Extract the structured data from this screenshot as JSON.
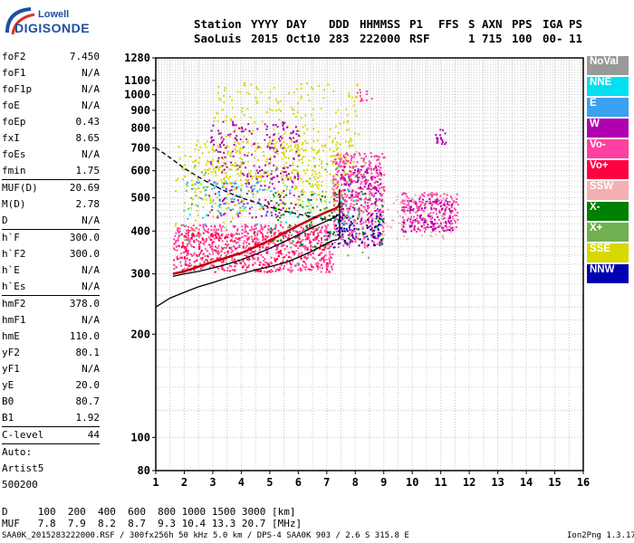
{
  "logo": {
    "line1": "Lowell",
    "line2": "DIGISONDE"
  },
  "header": {
    "row1": [
      "Station",
      "YYYY",
      "DAY",
      "DDD",
      "HHMMSS",
      "P1",
      "FFS",
      "S",
      "AXN",
      "PPS",
      "IGA",
      "PS"
    ],
    "row2": [
      "SaoLuis",
      "2015",
      "Oct10",
      "283",
      "222000",
      "RSF",
      "1",
      "715",
      "100",
      "00-",
      "11"
    ]
  },
  "params": [
    {
      "name": "foF2",
      "value": "7.450"
    },
    {
      "name": "foF1",
      "value": "N/A"
    },
    {
      "name": "foF1p",
      "value": "N/A"
    },
    {
      "name": "foE",
      "value": "N/A"
    },
    {
      "name": "foEp",
      "value": "0.43"
    },
    {
      "name": "fxI",
      "value": "8.65"
    },
    {
      "name": "foEs",
      "value": "N/A"
    },
    {
      "name": "fmin",
      "value": "1.75"
    },
    {
      "name": "MUF(D)",
      "value": "20.69",
      "sep": true
    },
    {
      "name": "M(D)",
      "value": "2.78"
    },
    {
      "name": "D",
      "value": "N/A"
    },
    {
      "name": "h`F",
      "value": "300.0",
      "sep": true
    },
    {
      "name": "h`F2",
      "value": "300.0"
    },
    {
      "name": "h`E",
      "value": "N/A"
    },
    {
      "name": "h`Es",
      "value": "N/A"
    },
    {
      "name": "hmF2",
      "value": "378.0",
      "sep": true
    },
    {
      "name": "hmF1",
      "value": "N/A"
    },
    {
      "name": "hmE",
      "value": "110.0"
    },
    {
      "name": "yF2",
      "value": "80.1"
    },
    {
      "name": "yF1",
      "value": "N/A"
    },
    {
      "name": "yE",
      "value": "20.0"
    },
    {
      "name": "B0",
      "value": "80.7"
    },
    {
      "name": "B1",
      "value": "1.92"
    },
    {
      "name": "C-level",
      "value": "44",
      "sep": true
    },
    {
      "name": "Auto:",
      "value": "",
      "sep": true
    },
    {
      "name": "Artist5",
      "value": ""
    },
    {
      "name": "500200",
      "value": ""
    }
  ],
  "legend": [
    {
      "label": "NoVal",
      "color": "#999999"
    },
    {
      "label": "NNE",
      "color": "#00e0f0"
    },
    {
      "label": "E",
      "color": "#3aa0f0"
    },
    {
      "label": "W",
      "color": "#b000b0"
    },
    {
      "label": "Vo-",
      "color": "#ff40a0"
    },
    {
      "label": "Vo+",
      "color": "#ff0040"
    },
    {
      "label": "SSW",
      "color": "#f4b0b0"
    },
    {
      "label": "X-",
      "color": "#008000"
    },
    {
      "label": "X+",
      "color": "#70b050"
    },
    {
      "label": "SSE",
      "color": "#d8d800"
    },
    {
      "label": "NNW",
      "color": "#0000b0"
    }
  ],
  "footer": {
    "d_row": "D     100  200  400  600  800 1000 1500 3000 [km]",
    "muf_row": "MUF   7.8  7.9  8.2  8.7  9.3 10.4 13.3 20.7 [MHz]",
    "file_info": "SAA0K_2015283222000.RSF / 300fx256h 50 kHz 5.0 km / DPS-4 SAA0K 903 / 2.6 S 315.8 E",
    "version": "Ion2Png 1.3.17"
  },
  "chart_data": {
    "type": "scatter",
    "xlim": [
      1,
      16
    ],
    "ylim": [
      80,
      1280
    ],
    "y_scale": "log",
    "x_ticks": [
      "1",
      "2",
      "3",
      "4",
      "5",
      "6",
      "7",
      "8",
      "9",
      "10",
      "11",
      "12",
      "13",
      "14",
      "15",
      "16"
    ],
    "y_ticks": [
      {
        "v": 80,
        "label": "80"
      },
      {
        "v": 100,
        "label": "100"
      },
      {
        "v": 200,
        "label": "200"
      },
      {
        "v": 300,
        "label": "300"
      },
      {
        "v": 400,
        "label": "400"
      },
      {
        "v": 500,
        "label": "500"
      },
      {
        "v": 600,
        "label": "600"
      },
      {
        "v": 700,
        "label": "700"
      },
      {
        "v": 800,
        "label": "800"
      },
      {
        "v": 900,
        "label": "900"
      },
      {
        "v": 1000,
        "label": "1000"
      },
      {
        "v": 1100,
        "label": "1100"
      },
      {
        "v": 1280,
        "label": "1280"
      }
    ],
    "grid": true,
    "traces": [
      {
        "name": "F2",
        "color": "#c00000",
        "x": [
          1.6,
          2.0,
          2.5,
          3.0,
          3.5,
          4.0,
          4.5,
          5.0,
          5.5,
          6.0,
          6.5,
          7.0,
          7.3,
          7.45
        ],
        "y": [
          300,
          305,
          315,
          325,
          335,
          345,
          360,
          375,
          395,
          415,
          435,
          455,
          465,
          475
        ]
      },
      {
        "name": "F2-profile",
        "color": "#000000",
        "x": [
          1.6,
          2.0,
          2.5,
          3.0,
          3.5,
          4.0,
          4.5,
          5.0,
          5.5,
          6.0,
          6.5,
          7.0,
          7.3,
          7.45
        ],
        "y": [
          295,
          300,
          305,
          312,
          320,
          330,
          342,
          356,
          372,
          390,
          410,
          428,
          440,
          448
        ]
      },
      {
        "name": "profile",
        "color": "#000000",
        "x": [
          1.0,
          1.5,
          2.0,
          2.5,
          3.0,
          3.5,
          4.0,
          4.5,
          5.0,
          5.5,
          6.0,
          6.5,
          7.0,
          7.2,
          7.4,
          7.45,
          7.45
        ],
        "y": [
          240,
          255,
          265,
          275,
          283,
          292,
          300,
          308,
          315,
          323,
          335,
          350,
          368,
          375,
          378,
          385,
          530
        ]
      },
      {
        "name": "MUF",
        "color": "#000000",
        "dashed": true,
        "x": [
          1.0,
          1.5,
          2.0,
          2.5,
          3.0,
          3.5,
          4.0,
          4.5,
          5.0,
          5.5,
          6.0,
          6.5,
          7.0,
          7.3
        ],
        "y": [
          700,
          655,
          610,
          575,
          545,
          520,
          500,
          485,
          470,
          458,
          448,
          440,
          432,
          428
        ]
      }
    ],
    "clusters": [
      {
        "color": "#d8d800",
        "x": [
          2.2,
          7.8
        ],
        "y": [
          460,
          740
        ],
        "n": 380
      },
      {
        "color": "#d8d800",
        "x": [
          3.0,
          8.2
        ],
        "y": [
          560,
          1100
        ],
        "n": 220
      },
      {
        "color": "#b000b0",
        "x": [
          2.8,
          6.0
        ],
        "y": [
          440,
          840
        ],
        "n": 260
      },
      {
        "color": "#ff40a0",
        "x": [
          1.6,
          7.2
        ],
        "y": [
          305,
          420
        ],
        "n": 700
      },
      {
        "color": "#ff0040",
        "x": [
          1.6,
          7.0
        ],
        "y": [
          305,
          400
        ],
        "n": 250
      },
      {
        "color": "#ff40a0",
        "x": [
          7.2,
          9.0
        ],
        "y": [
          360,
          680
        ],
        "n": 420
      },
      {
        "color": "#b000b0",
        "x": [
          7.4,
          8.9
        ],
        "y": [
          370,
          620
        ],
        "n": 160
      },
      {
        "color": "#ff40a0",
        "x": [
          9.6,
          11.6
        ],
        "y": [
          400,
          520
        ],
        "n": 200
      },
      {
        "color": "#b000b0",
        "x": [
          9.6,
          11.4
        ],
        "y": [
          400,
          500
        ],
        "n": 120
      },
      {
        "color": "#008000",
        "x": [
          5.0,
          9.0
        ],
        "y": [
          360,
          520
        ],
        "n": 120
      },
      {
        "color": "#0000b0",
        "x": [
          7.0,
          9.0
        ],
        "y": [
          360,
          450
        ],
        "n": 80
      },
      {
        "color": "#70b050",
        "x": [
          1.8,
          8.5
        ],
        "y": [
          320,
          640
        ],
        "n": 90
      },
      {
        "color": "#00e0f0",
        "x": [
          2.0,
          8.0
        ],
        "y": [
          420,
          560
        ],
        "n": 60
      },
      {
        "color": "#3aa0f0",
        "x": [
          2.0,
          5.0
        ],
        "y": [
          470,
          560
        ],
        "n": 50
      },
      {
        "color": "#f4b0b0",
        "x": [
          7.5,
          11.5
        ],
        "y": [
          380,
          520
        ],
        "n": 100
      },
      {
        "color": "#d8d800",
        "x": [
          1.6,
          4.0
        ],
        "y": [
          380,
          720
        ],
        "n": 60
      },
      {
        "color": "#b000b0",
        "x": [
          10.8,
          11.3
        ],
        "y": [
          720,
          800
        ],
        "n": 18
      },
      {
        "color": "#ff40a0",
        "x": [
          8.0,
          8.6
        ],
        "y": [
          960,
          1040
        ],
        "n": 12
      }
    ]
  }
}
